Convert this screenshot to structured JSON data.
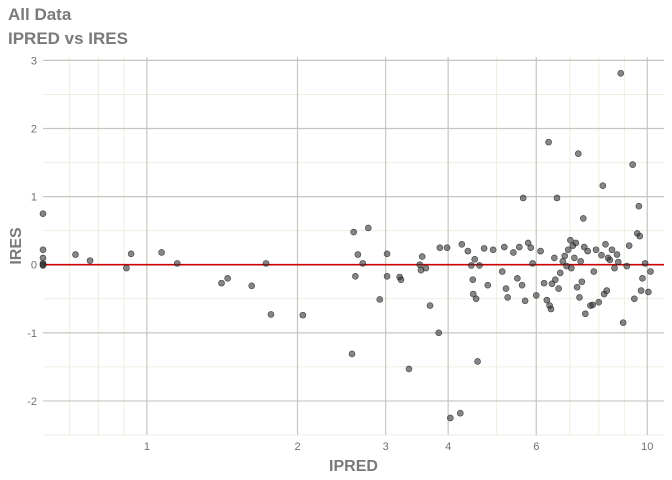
{
  "chart_data": {
    "type": "scatter",
    "title": "All Data",
    "subtitle": "IPRED vs IRES",
    "xlabel": "IPRED",
    "ylabel": "IRES",
    "x_scale": "log",
    "xlim": [
      0.62,
      10.8
    ],
    "ylim": [
      -2.5,
      3.05
    ],
    "x_ticks": [
      1,
      2,
      3,
      4,
      6,
      10
    ],
    "x_tick_labels": [
      "1",
      "2",
      "3",
      "4",
      "6",
      "10"
    ],
    "y_ticks": [
      -2,
      -1,
      0,
      1,
      2,
      3
    ],
    "y_tick_labels": [
      "-2",
      "-1",
      "0",
      "1",
      "2",
      "3"
    ],
    "x_minor_ticks": [
      0.7,
      0.8,
      0.9,
      5,
      7,
      8,
      9
    ],
    "grid": true,
    "reference_line": {
      "y": 0,
      "color": "#cc0000"
    },
    "point_color": "#333333",
    "points": [
      [
        0.62,
        0.75
      ],
      [
        0.62,
        0.22
      ],
      [
        0.62,
        0.1
      ],
      [
        0.62,
        0.02
      ],
      [
        0.62,
        0.0
      ],
      [
        0.62,
        -0.01
      ],
      [
        0.72,
        0.15
      ],
      [
        0.77,
        0.06
      ],
      [
        0.91,
        -0.05
      ],
      [
        0.93,
        0.16
      ],
      [
        1.07,
        0.18
      ],
      [
        1.15,
        0.02
      ],
      [
        1.41,
        -0.27
      ],
      [
        1.45,
        -0.2
      ],
      [
        1.62,
        -0.31
      ],
      [
        1.73,
        0.02
      ],
      [
        1.77,
        -0.73
      ],
      [
        2.05,
        -0.74
      ],
      [
        2.59,
        0.48
      ],
      [
        2.61,
        -0.17
      ],
      [
        2.64,
        0.15
      ],
      [
        2.7,
        0.02
      ],
      [
        2.77,
        0.54
      ],
      [
        2.57,
        -1.31
      ],
      [
        2.92,
        -0.51
      ],
      [
        3.02,
        0.16
      ],
      [
        3.02,
        -0.17
      ],
      [
        3.2,
        -0.18
      ],
      [
        3.22,
        -0.22
      ],
      [
        3.34,
        -1.53
      ],
      [
        3.51,
        0.0
      ],
      [
        3.55,
        0.12
      ],
      [
        3.53,
        -0.08
      ],
      [
        3.61,
        -0.05
      ],
      [
        3.68,
        -0.6
      ],
      [
        3.85,
        0.25
      ],
      [
        3.83,
        -1.0
      ],
      [
        3.98,
        0.25
      ],
      [
        4.04,
        -2.25
      ],
      [
        4.26,
        0.3
      ],
      [
        4.23,
        -2.18
      ],
      [
        4.38,
        0.2
      ],
      [
        4.45,
        -0.01
      ],
      [
        4.48,
        -0.22
      ],
      [
        4.49,
        -0.43
      ],
      [
        4.52,
        0.08
      ],
      [
        4.55,
        -0.5
      ],
      [
        4.58,
        -1.42
      ],
      [
        4.62,
        -0.01
      ],
      [
        4.72,
        0.24
      ],
      [
        4.8,
        -0.3
      ],
      [
        4.92,
        0.22
      ],
      [
        5.13,
        -0.1
      ],
      [
        5.18,
        0.26
      ],
      [
        5.22,
        -0.35
      ],
      [
        5.26,
        -0.48
      ],
      [
        5.4,
        0.18
      ],
      [
        5.5,
        -0.2
      ],
      [
        5.55,
        0.26
      ],
      [
        5.62,
        -0.3
      ],
      [
        5.65,
        0.98
      ],
      [
        5.7,
        -0.53
      ],
      [
        5.78,
        0.32
      ],
      [
        5.85,
        0.25
      ],
      [
        5.9,
        0.02
      ],
      [
        6.0,
        -0.45
      ],
      [
        6.12,
        0.2
      ],
      [
        6.22,
        -0.27
      ],
      [
        6.3,
        -0.52
      ],
      [
        6.35,
        1.8
      ],
      [
        6.38,
        -0.6
      ],
      [
        6.42,
        -0.65
      ],
      [
        6.45,
        -0.28
      ],
      [
        6.52,
        0.1
      ],
      [
        6.55,
        -0.22
      ],
      [
        6.6,
        0.98
      ],
      [
        6.65,
        -0.35
      ],
      [
        6.7,
        -0.12
      ],
      [
        6.78,
        0.05
      ],
      [
        6.84,
        0.13
      ],
      [
        6.9,
        -0.02
      ],
      [
        6.95,
        0.22
      ],
      [
        7.02,
        0.36
      ],
      [
        7.05,
        -0.05
      ],
      [
        7.1,
        0.28
      ],
      [
        7.15,
        0.1
      ],
      [
        7.2,
        0.32
      ],
      [
        7.24,
        -0.33
      ],
      [
        7.28,
        1.63
      ],
      [
        7.32,
        -0.48
      ],
      [
        7.36,
        0.05
      ],
      [
        7.4,
        -0.25
      ],
      [
        7.45,
        0.68
      ],
      [
        7.48,
        0.26
      ],
      [
        7.52,
        -0.72
      ],
      [
        7.6,
        0.2
      ],
      [
        7.7,
        -0.6
      ],
      [
        7.78,
        -0.59
      ],
      [
        7.82,
        -0.1
      ],
      [
        7.9,
        0.22
      ],
      [
        8.0,
        -0.55
      ],
      [
        8.1,
        0.14
      ],
      [
        8.15,
        1.16
      ],
      [
        8.2,
        -0.43
      ],
      [
        8.25,
        0.3
      ],
      [
        8.3,
        -0.38
      ],
      [
        8.35,
        0.1
      ],
      [
        8.42,
        0.07
      ],
      [
        8.5,
        0.22
      ],
      [
        8.6,
        -0.05
      ],
      [
        8.7,
        0.15
      ],
      [
        8.75,
        0.04
      ],
      [
        8.85,
        2.81
      ],
      [
        8.95,
        -0.85
      ],
      [
        9.1,
        -0.02
      ],
      [
        9.2,
        0.28
      ],
      [
        9.35,
        1.47
      ],
      [
        9.42,
        -0.5
      ],
      [
        9.55,
        0.46
      ],
      [
        9.62,
        0.86
      ],
      [
        9.66,
        0.42
      ],
      [
        9.72,
        -0.38
      ],
      [
        9.78,
        -0.2
      ],
      [
        9.9,
        0.02
      ],
      [
        10.05,
        -0.4
      ],
      [
        10.15,
        -0.1
      ]
    ]
  }
}
